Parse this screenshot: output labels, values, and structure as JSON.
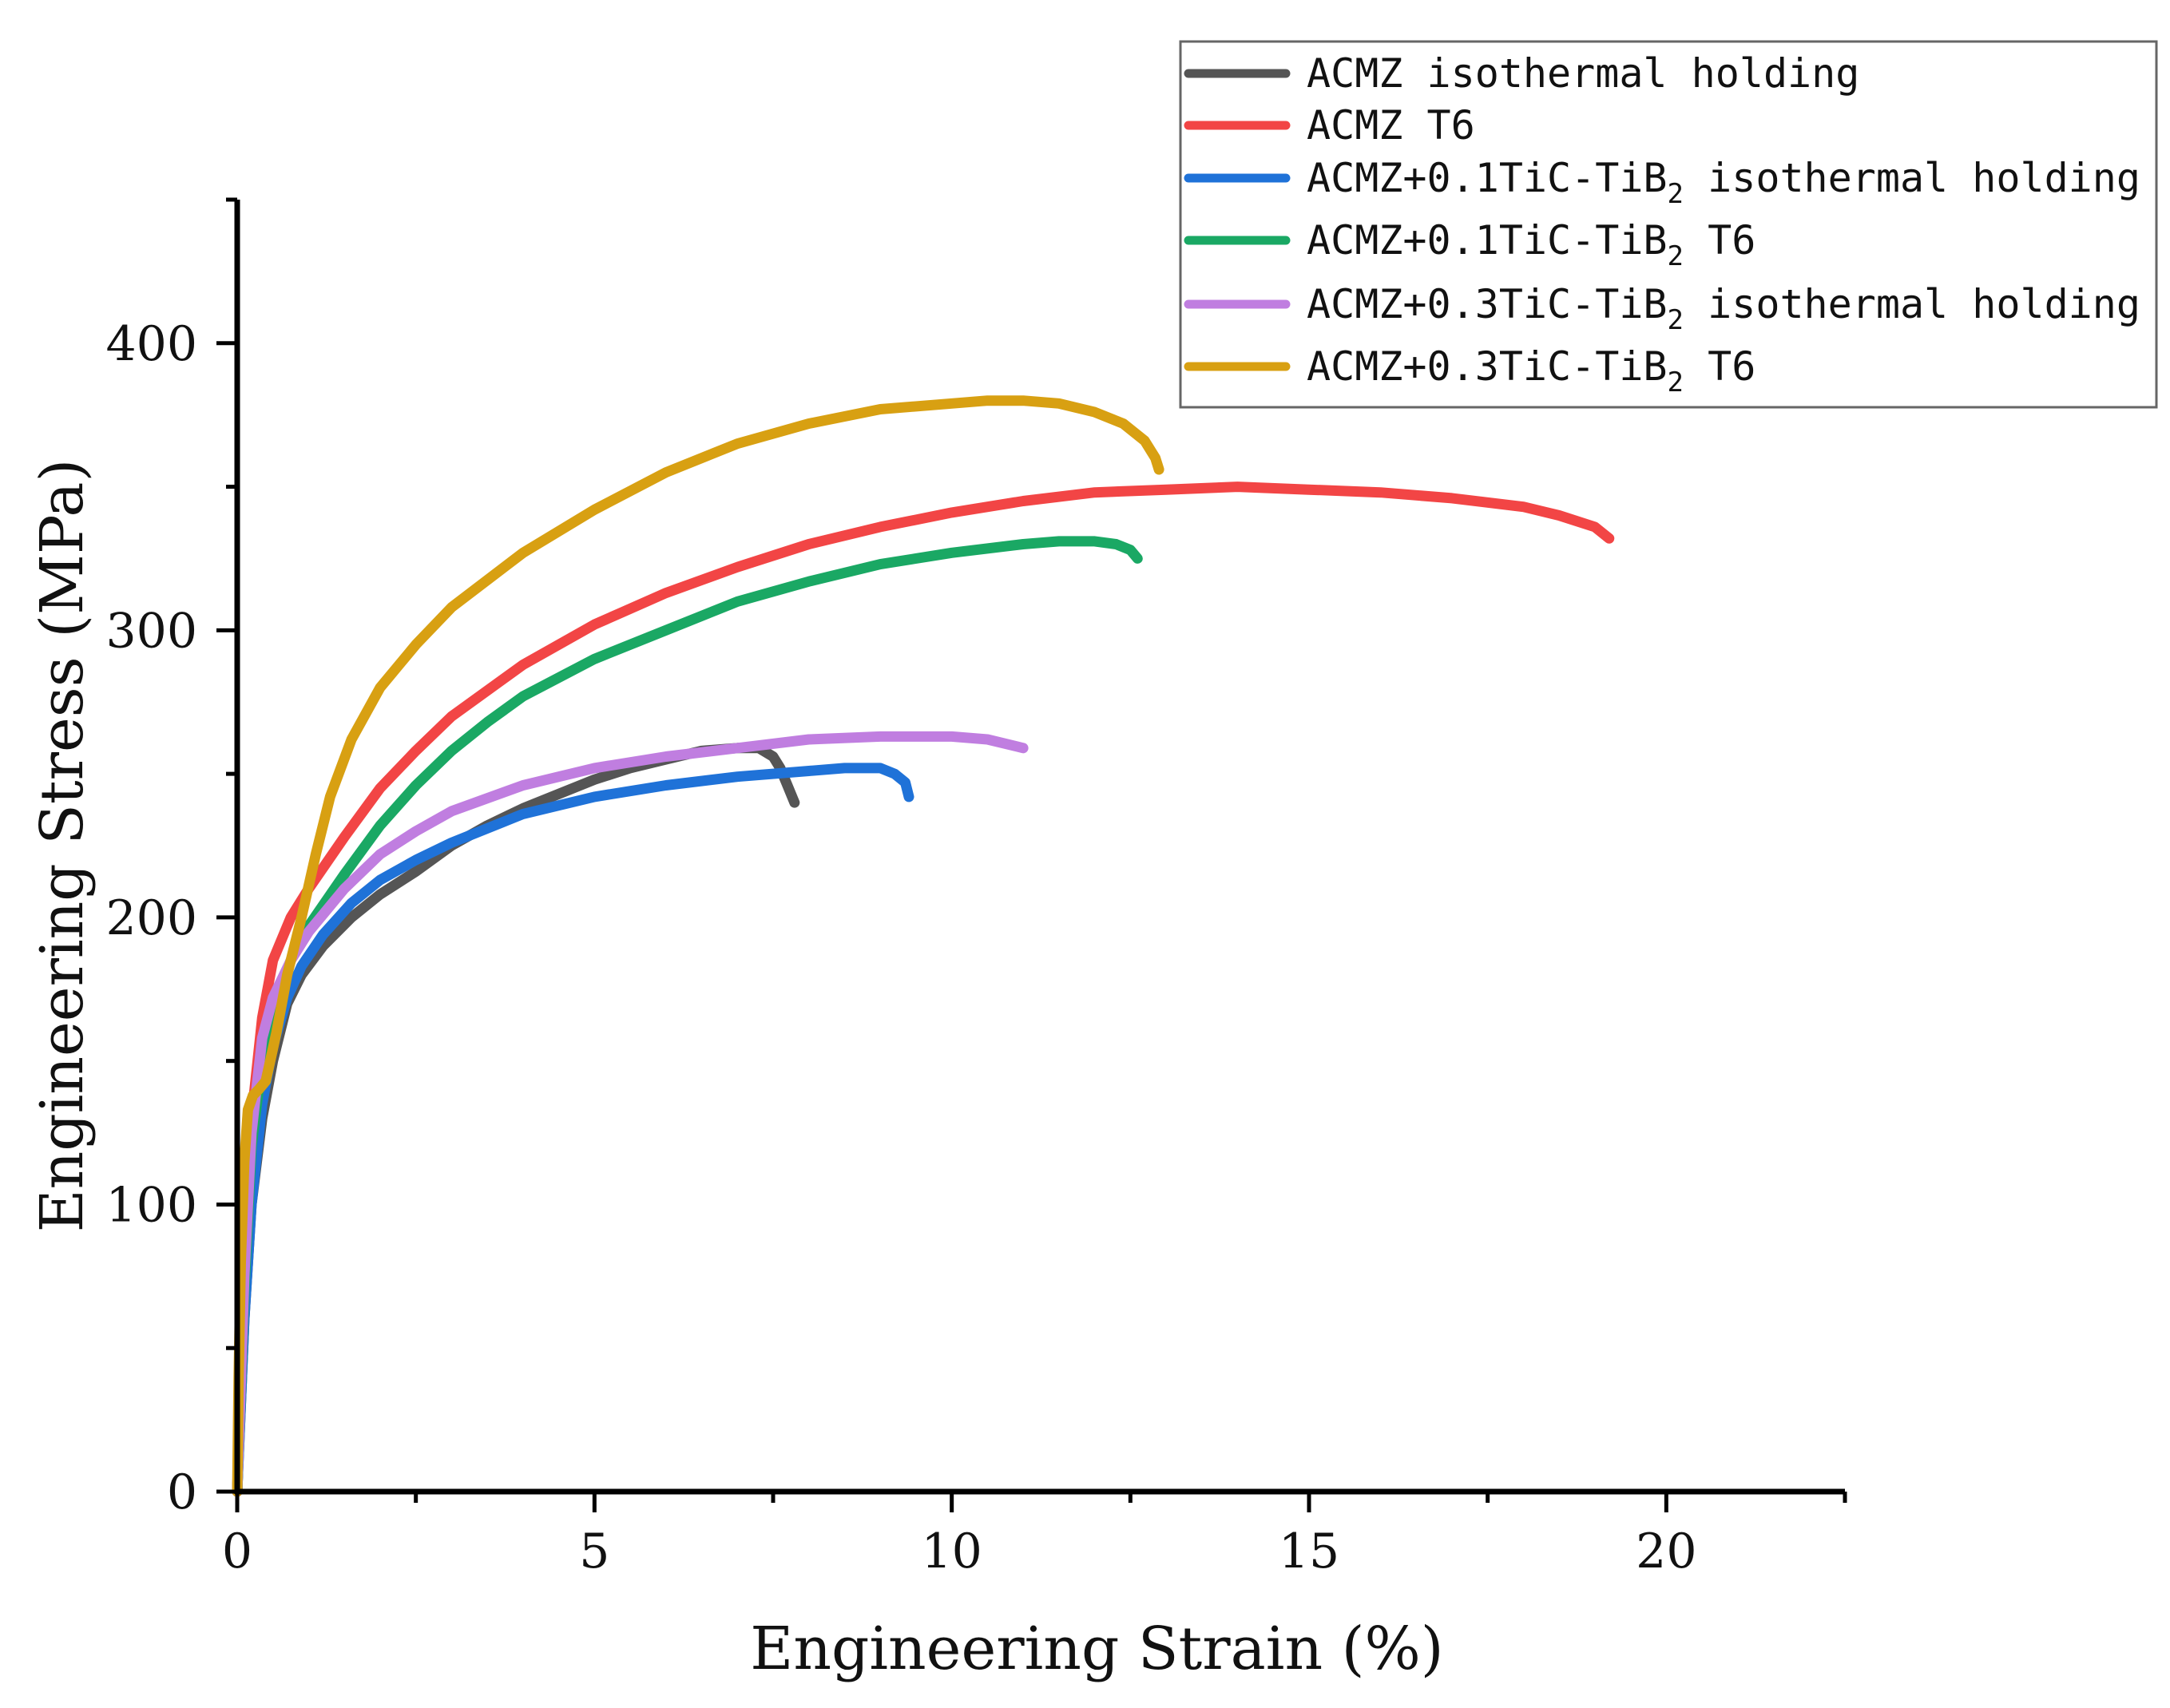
{
  "chart_data": {
    "type": "line",
    "title": "",
    "xlabel": "Engineering Strain (%)",
    "ylabel": "Engineering Stress (MPa)",
    "xlim": [
      0,
      22.5
    ],
    "ylim": [
      0,
      450
    ],
    "xticks": [
      0,
      5,
      10,
      15,
      20
    ],
    "yticks": [
      0,
      100,
      200,
      300,
      400
    ],
    "legend_position": "top-right",
    "series": [
      {
        "name": "ACMZ isothermal holding",
        "label_main": "ACMZ isothermal holding",
        "label_sub": "",
        "label_tail": "",
        "color": "#555555",
        "x": [
          0,
          0.1,
          0.2,
          0.35,
          0.5,
          0.7,
          0.9,
          1.2,
          1.6,
          2.0,
          2.5,
          3.0,
          3.5,
          4.0,
          4.5,
          5.0,
          5.5,
          6.0,
          6.5,
          7.0,
          7.3,
          7.5,
          7.6,
          7.7,
          7.8
        ],
        "y": [
          0,
          60,
          100,
          130,
          150,
          170,
          180,
          190,
          200,
          208,
          216,
          225,
          232,
          238,
          243,
          248,
          252,
          255,
          258,
          259,
          259,
          256,
          252,
          246,
          240
        ]
      },
      {
        "name": "ACMZ T6",
        "label_main": "ACMZ T6",
        "label_sub": "",
        "label_tail": "",
        "color": "#f24545",
        "x": [
          0,
          0.1,
          0.2,
          0.35,
          0.5,
          0.75,
          1.0,
          1.5,
          2.0,
          2.5,
          3.0,
          4.0,
          5.0,
          6.0,
          7.0,
          8.0,
          9.0,
          10.0,
          11.0,
          12.0,
          13.0,
          14.0,
          15.0,
          16.0,
          17.0,
          18.0,
          18.5,
          19.0,
          19.2
        ],
        "y": [
          0,
          80,
          130,
          165,
          185,
          200,
          210,
          228,
          245,
          258,
          270,
          288,
          302,
          313,
          322,
          330,
          336,
          341,
          345,
          348,
          349,
          350,
          349,
          348,
          346,
          343,
          340,
          336,
          332
        ]
      },
      {
        "name": "ACMZ+0.1TiC-TiB2 isothermal holding",
        "label_main": "ACMZ+0.1TiC-TiB",
        "label_sub": "2",
        "label_tail": " isothermal holding",
        "color": "#1f72d8",
        "x": [
          0,
          0.1,
          0.2,
          0.35,
          0.5,
          0.7,
          0.9,
          1.2,
          1.6,
          2.0,
          2.5,
          3.0,
          4.0,
          5.0,
          6.0,
          7.0,
          8.0,
          8.5,
          9.0,
          9.2,
          9.35,
          9.4
        ],
        "y": [
          0,
          60,
          100,
          135,
          155,
          172,
          183,
          194,
          205,
          213,
          220,
          226,
          236,
          242,
          246,
          249,
          251,
          252,
          252,
          250,
          247,
          242
        ]
      },
      {
        "name": "ACMZ+0.1TiC-TiB2 T6",
        "label_main": "ACMZ+0.1TiC-TiB",
        "label_sub": "2",
        "label_tail": " T6",
        "color": "#1aa864",
        "x": [
          0,
          0.1,
          0.2,
          0.35,
          0.5,
          0.75,
          1.0,
          1.5,
          2.0,
          2.5,
          3.0,
          3.5,
          4.0,
          5.0,
          6.0,
          7.0,
          8.0,
          9.0,
          10.0,
          11.0,
          11.5,
          12.0,
          12.3,
          12.5,
          12.6
        ],
        "y": [
          0,
          70,
          120,
          150,
          168,
          185,
          197,
          215,
          232,
          246,
          258,
          268,
          277,
          290,
          300,
          310,
          317,
          323,
          327,
          330,
          331,
          331,
          330,
          328,
          325
        ]
      },
      {
        "name": "ACMZ+0.3TiC-TiB2 isothermal holding",
        "label_main": "ACMZ+0.3TiC-TiB",
        "label_sub": "2",
        "label_tail": " isothermal holding",
        "color": "#c07ee0",
        "x": [
          0,
          0.1,
          0.2,
          0.35,
          0.5,
          0.75,
          1.0,
          1.5,
          2.0,
          2.5,
          3.0,
          4.0,
          5.0,
          6.0,
          7.0,
          8.0,
          9.0,
          10.0,
          10.5,
          11.0
        ],
        "y": [
          0,
          75,
          125,
          158,
          172,
          185,
          195,
          210,
          222,
          230,
          237,
          246,
          252,
          256,
          259,
          262,
          263,
          263,
          262,
          259
        ]
      },
      {
        "name": "ACMZ+0.3TiC-TiB2 T6",
        "label_main": "ACMZ+0.3TiC-TiB",
        "label_sub": "2",
        "label_tail": " T6",
        "color": "#d8a012",
        "x": [
          0,
          0.02,
          0.05,
          0.1,
          0.15,
          0.22,
          0.3,
          0.4,
          0.55,
          0.7,
          0.9,
          1.1,
          1.3,
          1.6,
          2.0,
          2.5,
          3.0,
          4.0,
          5.0,
          6.0,
          7.0,
          8.0,
          9.0,
          10.0,
          10.5,
          11.0,
          11.5,
          12.0,
          12.4,
          12.7,
          12.85,
          12.9
        ],
        "y": [
          0,
          40,
          80,
          115,
          133,
          138,
          140,
          143,
          160,
          180,
          200,
          222,
          242,
          262,
          280,
          295,
          308,
          327,
          342,
          355,
          365,
          372,
          377,
          379,
          380,
          380,
          379,
          376,
          372,
          366,
          360,
          356
        ]
      }
    ]
  }
}
